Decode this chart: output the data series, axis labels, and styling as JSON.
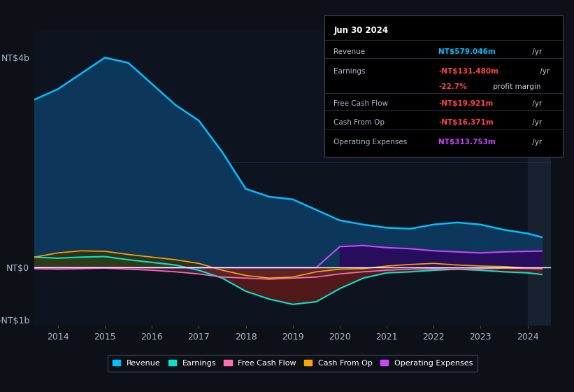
{
  "bg_color": "#0d1117",
  "plot_bg": "#0d1420",
  "years": [
    2013.5,
    2014.0,
    2014.5,
    2015.0,
    2015.5,
    2016.0,
    2016.5,
    2017.0,
    2017.5,
    2018.0,
    2018.5,
    2019.0,
    2019.5,
    2020.0,
    2020.5,
    2021.0,
    2021.5,
    2022.0,
    2022.5,
    2023.0,
    2023.5,
    2024.0,
    2024.3
  ],
  "revenue": [
    3200,
    3400,
    3700,
    4000,
    3900,
    3500,
    3100,
    2800,
    2200,
    1500,
    1350,
    1300,
    1100,
    900,
    820,
    760,
    740,
    820,
    860,
    820,
    720,
    650,
    580
  ],
  "earnings": [
    200,
    180,
    200,
    210,
    150,
    100,
    50,
    -50,
    -200,
    -450,
    -600,
    -700,
    -650,
    -400,
    -200,
    -100,
    -80,
    -50,
    -30,
    -50,
    -80,
    -100,
    -131
  ],
  "fcf": [
    -20,
    -30,
    -20,
    -10,
    -30,
    -50,
    -80,
    -120,
    -180,
    -200,
    -220,
    -200,
    -180,
    -120,
    -80,
    -50,
    -30,
    -20,
    -30,
    -20,
    -10,
    -15,
    -20
  ],
  "cashfromop": [
    200,
    280,
    320,
    310,
    250,
    200,
    150,
    80,
    -50,
    -150,
    -200,
    -180,
    -80,
    -30,
    -20,
    30,
    60,
    80,
    50,
    30,
    20,
    -10,
    -16
  ],
  "opex": [
    0,
    0,
    0,
    0,
    0,
    0,
    0,
    0,
    0,
    0,
    0,
    0,
    0,
    400,
    420,
    380,
    360,
    320,
    300,
    280,
    300,
    310,
    314
  ],
  "revenue_color": "#00bfff",
  "revenue_fill": "#0d3a5e",
  "earnings_color": "#00e5cc",
  "earnings_fill_pos": "#1a5e4a",
  "earnings_fill_neg": "#5e1a1a",
  "fcf_color": "#ff6eb4",
  "fcf_fill": "#5e2a3a",
  "cashfromop_color": "#ffa500",
  "cashfromop_fill_pos": "#3a3000",
  "cashfromop_fill_neg": "#5e2000",
  "opex_color": "#cc44ff",
  "opex_fill": "#2a0a5e",
  "shaded_region_start": 2024.0,
  "shaded_region_color": "#1a2535",
  "yticks": [
    -1000,
    0,
    4000
  ],
  "ylabels": [
    "-NT$1b",
    "NT$0",
    "NT$4b"
  ],
  "ylim": [
    -1100,
    4500
  ],
  "xlim": [
    2013.5,
    2024.5
  ],
  "xticks": [
    2014,
    2015,
    2016,
    2017,
    2018,
    2019,
    2020,
    2021,
    2022,
    2023,
    2024
  ],
  "zero_line_color": "#ffffff",
  "legend": [
    {
      "label": "Revenue",
      "color": "#00bfff"
    },
    {
      "label": "Earnings",
      "color": "#00e5cc"
    },
    {
      "label": "Free Cash Flow",
      "color": "#ff6eb4"
    },
    {
      "label": "Cash From Op",
      "color": "#ffa500"
    },
    {
      "label": "Operating Expenses",
      "color": "#cc44ff"
    }
  ]
}
